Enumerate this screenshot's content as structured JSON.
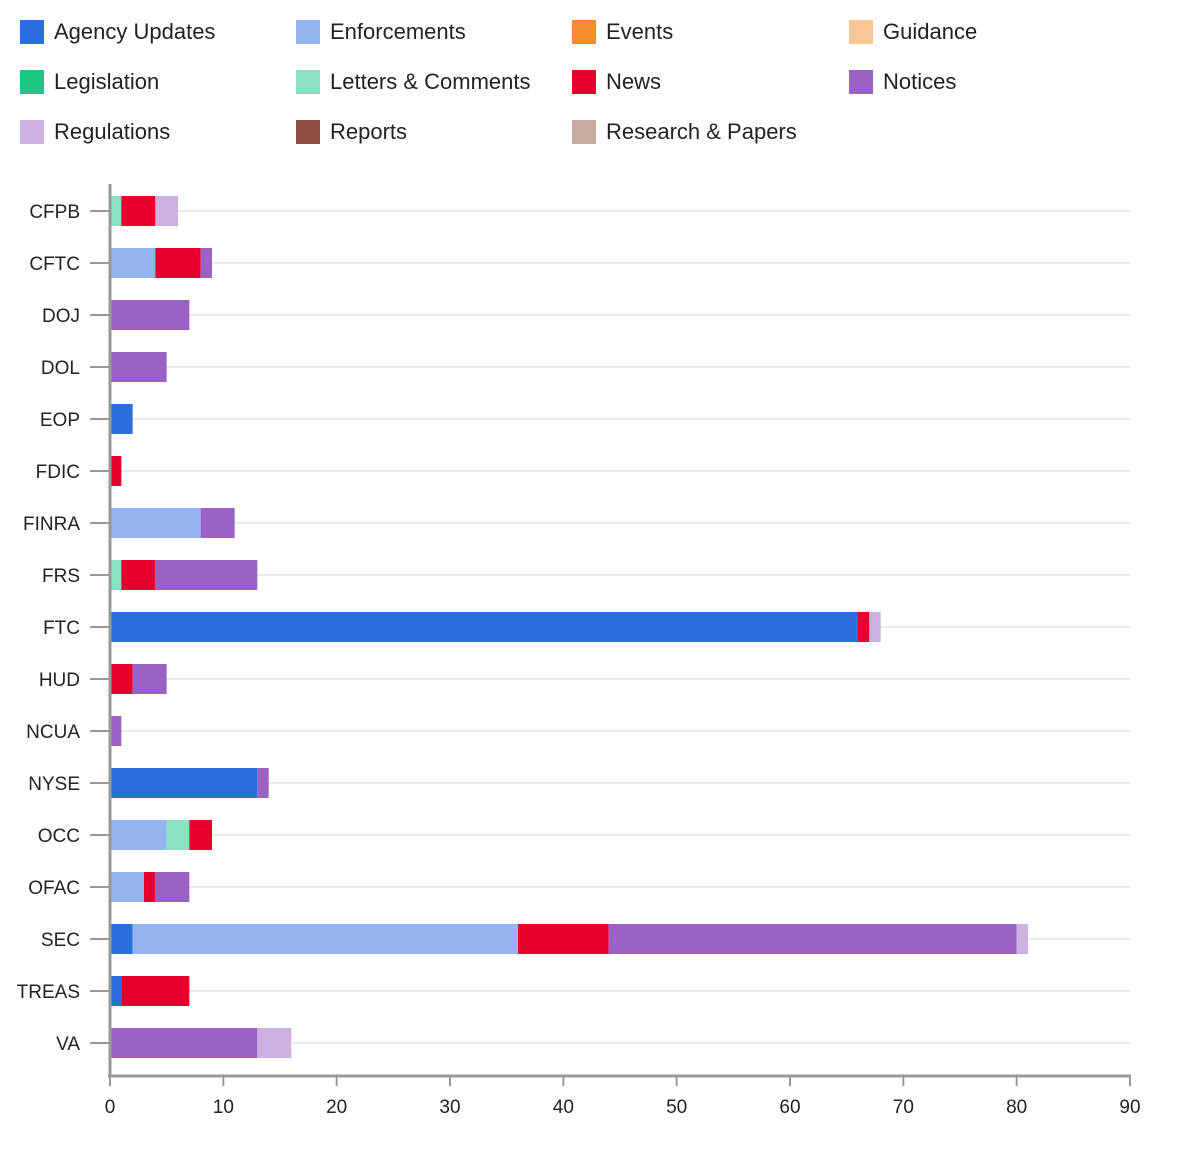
{
  "chart_data": {
    "type": "bar",
    "orientation": "horizontal",
    "stacked": true,
    "title": "",
    "xlabel": "",
    "ylabel": "",
    "xlim": [
      0,
      90
    ],
    "x_ticks": [
      0,
      10,
      20,
      30,
      40,
      50,
      60,
      70,
      80,
      90
    ],
    "grid": true,
    "legend_position": "top",
    "categories": [
      "CFPB",
      "CFTC",
      "DOJ",
      "DOL",
      "EOP",
      "FDIC",
      "FINRA",
      "FRS",
      "FTC",
      "HUD",
      "NCUA",
      "NYSE",
      "OCC",
      "OFAC",
      "SEC",
      "TREAS",
      "VA"
    ],
    "series": [
      {
        "name": "Agency Updates",
        "color": "#2b6fdf",
        "values": [
          0,
          0,
          0,
          0,
          2,
          0,
          0,
          0,
          66,
          0,
          0,
          13,
          0,
          0,
          2,
          1,
          0
        ]
      },
      {
        "name": "Enforcements",
        "color": "#94b4f0",
        "values": [
          0,
          4,
          0,
          0,
          0,
          0,
          8,
          0,
          0,
          0,
          0,
          0,
          5,
          3,
          34,
          0,
          0
        ]
      },
      {
        "name": "Events",
        "color": "#f58b2a",
        "values": [
          0,
          0,
          0,
          0,
          0,
          0,
          0,
          0,
          0,
          0,
          0,
          0,
          0,
          0,
          0,
          0,
          0
        ]
      },
      {
        "name": "Guidance",
        "color": "#fbc595",
        "values": [
          0,
          0,
          0,
          0,
          0,
          0,
          0,
          0,
          0,
          0,
          0,
          0,
          0,
          0,
          0,
          0,
          0
        ]
      },
      {
        "name": "Legislation",
        "color": "#1cc584",
        "values": [
          0,
          0,
          0,
          0,
          0,
          0,
          0,
          0,
          0,
          0,
          0,
          0,
          0,
          0,
          0,
          0,
          0
        ]
      },
      {
        "name": "Letters & Comments",
        "color": "#8ce0c1",
        "values": [
          1,
          0,
          0,
          0,
          0,
          0,
          0,
          1,
          0,
          0,
          0,
          0,
          2,
          0,
          0,
          0,
          0
        ]
      },
      {
        "name": "News",
        "color": "#e8002d",
        "values": [
          3,
          4,
          0,
          0,
          0,
          1,
          0,
          3,
          1,
          2,
          0,
          0,
          2,
          1,
          8,
          6,
          0
        ]
      },
      {
        "name": "Notices",
        "color": "#9a62c3",
        "values": [
          0,
          1,
          7,
          5,
          0,
          0,
          3,
          9,
          0,
          3,
          1,
          1,
          0,
          3,
          36,
          0,
          13
        ]
      },
      {
        "name": "Regulations",
        "color": "#ccb0e0",
        "values": [
          2,
          0,
          0,
          0,
          0,
          0,
          0,
          0,
          1,
          0,
          0,
          0,
          0,
          0,
          1,
          0,
          3
        ]
      },
      {
        "name": "Reports",
        "color": "#8f5144",
        "values": [
          0,
          0,
          0,
          0,
          0,
          0,
          0,
          0,
          0,
          0,
          0,
          0,
          0,
          0,
          0,
          0,
          0
        ]
      },
      {
        "name": "Research & Papers",
        "color": "#c9aba3",
        "values": [
          0,
          0,
          0,
          0,
          0,
          0,
          0,
          0,
          0,
          0,
          0,
          0,
          0,
          0,
          0,
          0,
          0
        ]
      }
    ]
  }
}
